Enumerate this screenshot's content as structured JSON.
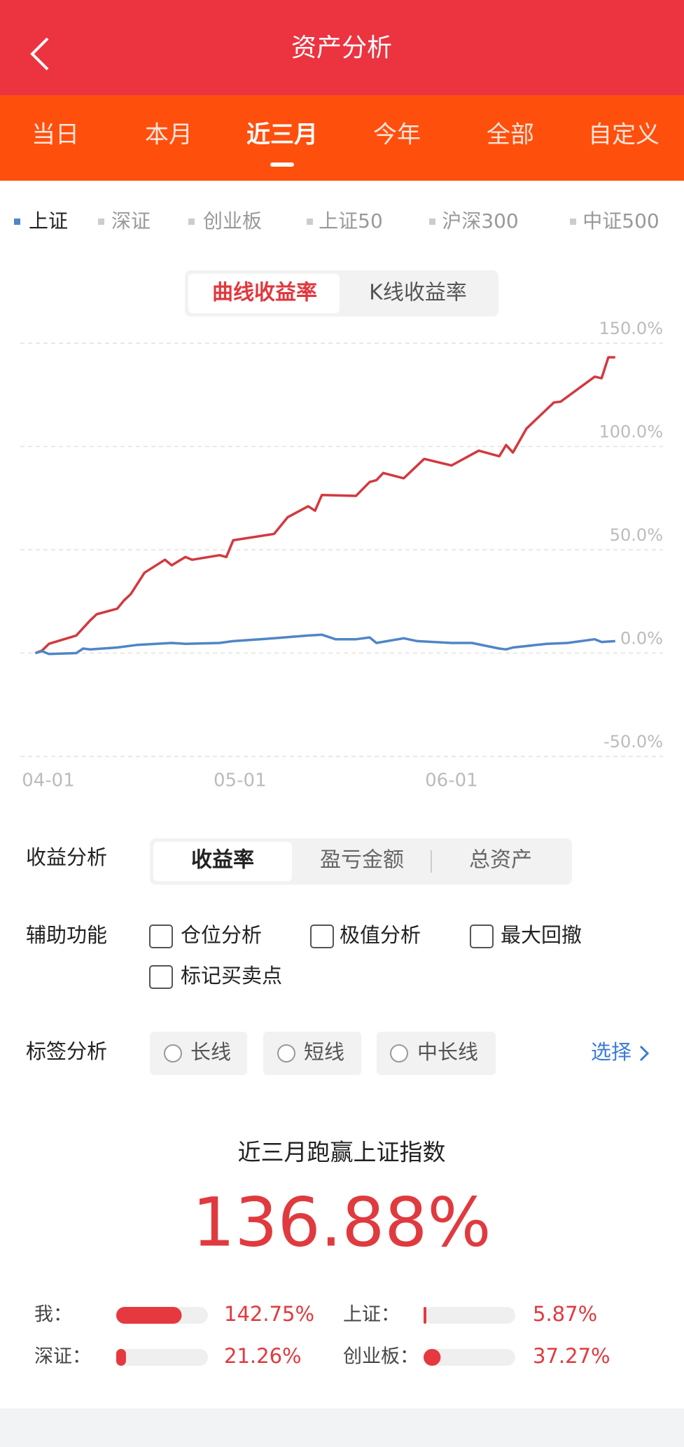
{
  "header": {
    "title": "资产分析"
  },
  "period_tabs": {
    "items": [
      "当日",
      "本月",
      "近三月",
      "今年",
      "全部",
      "自定义"
    ],
    "selected": 2
  },
  "index_tabs": [
    "深证",
    "创业板",
    "上证50",
    "沪深300",
    "中证500"
  ],
  "chart_toggle": [
    "曲线收益率",
    "K线收益率"
  ],
  "chart_data": {
    "type": "line",
    "xlim": [
      -2.2,
      92
    ],
    "xticks": [
      {
        "value": 0,
        "label": "04-01"
      },
      {
        "value": 30,
        "label": "05-01"
      },
      {
        "value": 61,
        "label": "06-01"
      }
    ],
    "ylim": [
      -50,
      150
    ],
    "yticks": [
      {
        "value": 150,
        "label": "150.0%"
      },
      {
        "value": 100,
        "label": "100.0%"
      },
      {
        "value": 50,
        "label": "50.0%"
      },
      {
        "value": 0,
        "label": "0.0%"
      },
      {
        "value": -50,
        "label": "-50.0%"
      }
    ],
    "grid": true,
    "series": [
      {
        "color": "#d2393f",
        "x": [
          0,
          1,
          2,
          6,
          8,
          9,
          12,
          13,
          14,
          16,
          19,
          20,
          22,
          23,
          27,
          28,
          29,
          35,
          37,
          40,
          41,
          42,
          47,
          49,
          50,
          51,
          54,
          57,
          61,
          64,
          65,
          68,
          69,
          70,
          72,
          76,
          77,
          82,
          83,
          84,
          85
        ],
        "values": [
          0,
          1.3,
          4.5,
          8.5,
          15.7,
          18.8,
          21.5,
          25.5,
          28.6,
          38.9,
          45.2,
          42.5,
          46.5,
          45.2,
          47.4,
          46.5,
          54.6,
          57.7,
          65.8,
          71.1,
          68.9,
          76.5,
          76.1,
          82.8,
          83.7,
          87.2,
          84.6,
          94,
          90.8,
          96.2,
          98,
          95.3,
          100.7,
          97.1,
          108.7,
          121.3,
          121.7,
          133.8,
          133,
          143.2,
          143.2
        ]
      },
      {
        "name": "上证",
        "color": "#4f86c6",
        "x": [
          0,
          1,
          2,
          6,
          7,
          8,
          12,
          15,
          20,
          22,
          27,
          29,
          35,
          40,
          42,
          44,
          47,
          49,
          50,
          54,
          56,
          61,
          64,
          68,
          69,
          70,
          75,
          78,
          82,
          83,
          85
        ],
        "values": [
          0,
          0.9,
          -0.4,
          0,
          2.2,
          1.8,
          2.7,
          4,
          4.9,
          4.5,
          4.9,
          5.8,
          7.2,
          8.5,
          8.9,
          6.7,
          6.7,
          7.6,
          4.9,
          7.2,
          5.8,
          4.9,
          4.9,
          2.2,
          1.8,
          2.7,
          4.5,
          4.9,
          6.7,
          5.4,
          5.8
        ]
      }
    ]
  },
  "controls": {
    "return_analysis": {
      "label": "收益分析",
      "options": [
        "收益率",
        "盈亏金额",
        "总资产"
      ]
    },
    "aux": {
      "label": "辅助功能",
      "options": [
        "仓位分析",
        "极值分析",
        "最大回撤",
        "标记买卖点"
      ]
    },
    "tags": {
      "label": "标签分析",
      "options": [
        "长线",
        "短线",
        "中长线"
      ],
      "action": "选择"
    }
  },
  "summary": {
    "headline": "近三月跑赢上证指数",
    "value": "136.88%",
    "bars": {
      "type": "bar",
      "xlim": [
        0,
        200
      ],
      "categories": [
        "我：",
        "上证：",
        "深证：",
        "创业板："
      ],
      "values": [
        142.75,
        5.87,
        21.26,
        37.27
      ],
      "value_labels": [
        "142.75%",
        "5.87%",
        "21.26%",
        "37.27%"
      ]
    }
  }
}
